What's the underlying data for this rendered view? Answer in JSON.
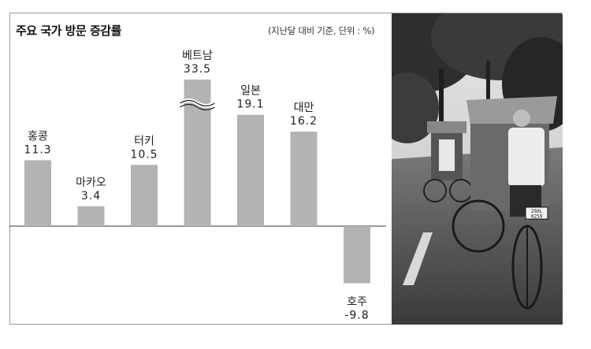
{
  "chart_data": {
    "type": "bar",
    "title": "주요 국가 방문 증감률",
    "note": "(지난달 대비 기준, 단위 : %)",
    "categories": [
      "홍콩",
      "마카오",
      "터키",
      "베트남",
      "일본",
      "대만",
      "호주"
    ],
    "values": [
      11.3,
      3.4,
      10.5,
      33.5,
      19.1,
      16.2,
      -9.8
    ],
    "value_labels": [
      "11.3",
      "3.4",
      "10.5",
      "33.5",
      "19.1",
      "16.2",
      "-9.8"
    ],
    "axis_break": {
      "category": "베트남"
    },
    "bar_color": "#b3b3b3",
    "grid": false,
    "legend": "none"
  },
  "photo": {
    "icon": "cycle-rickshaw-street-photo",
    "plate_text": "29XL 0259"
  }
}
